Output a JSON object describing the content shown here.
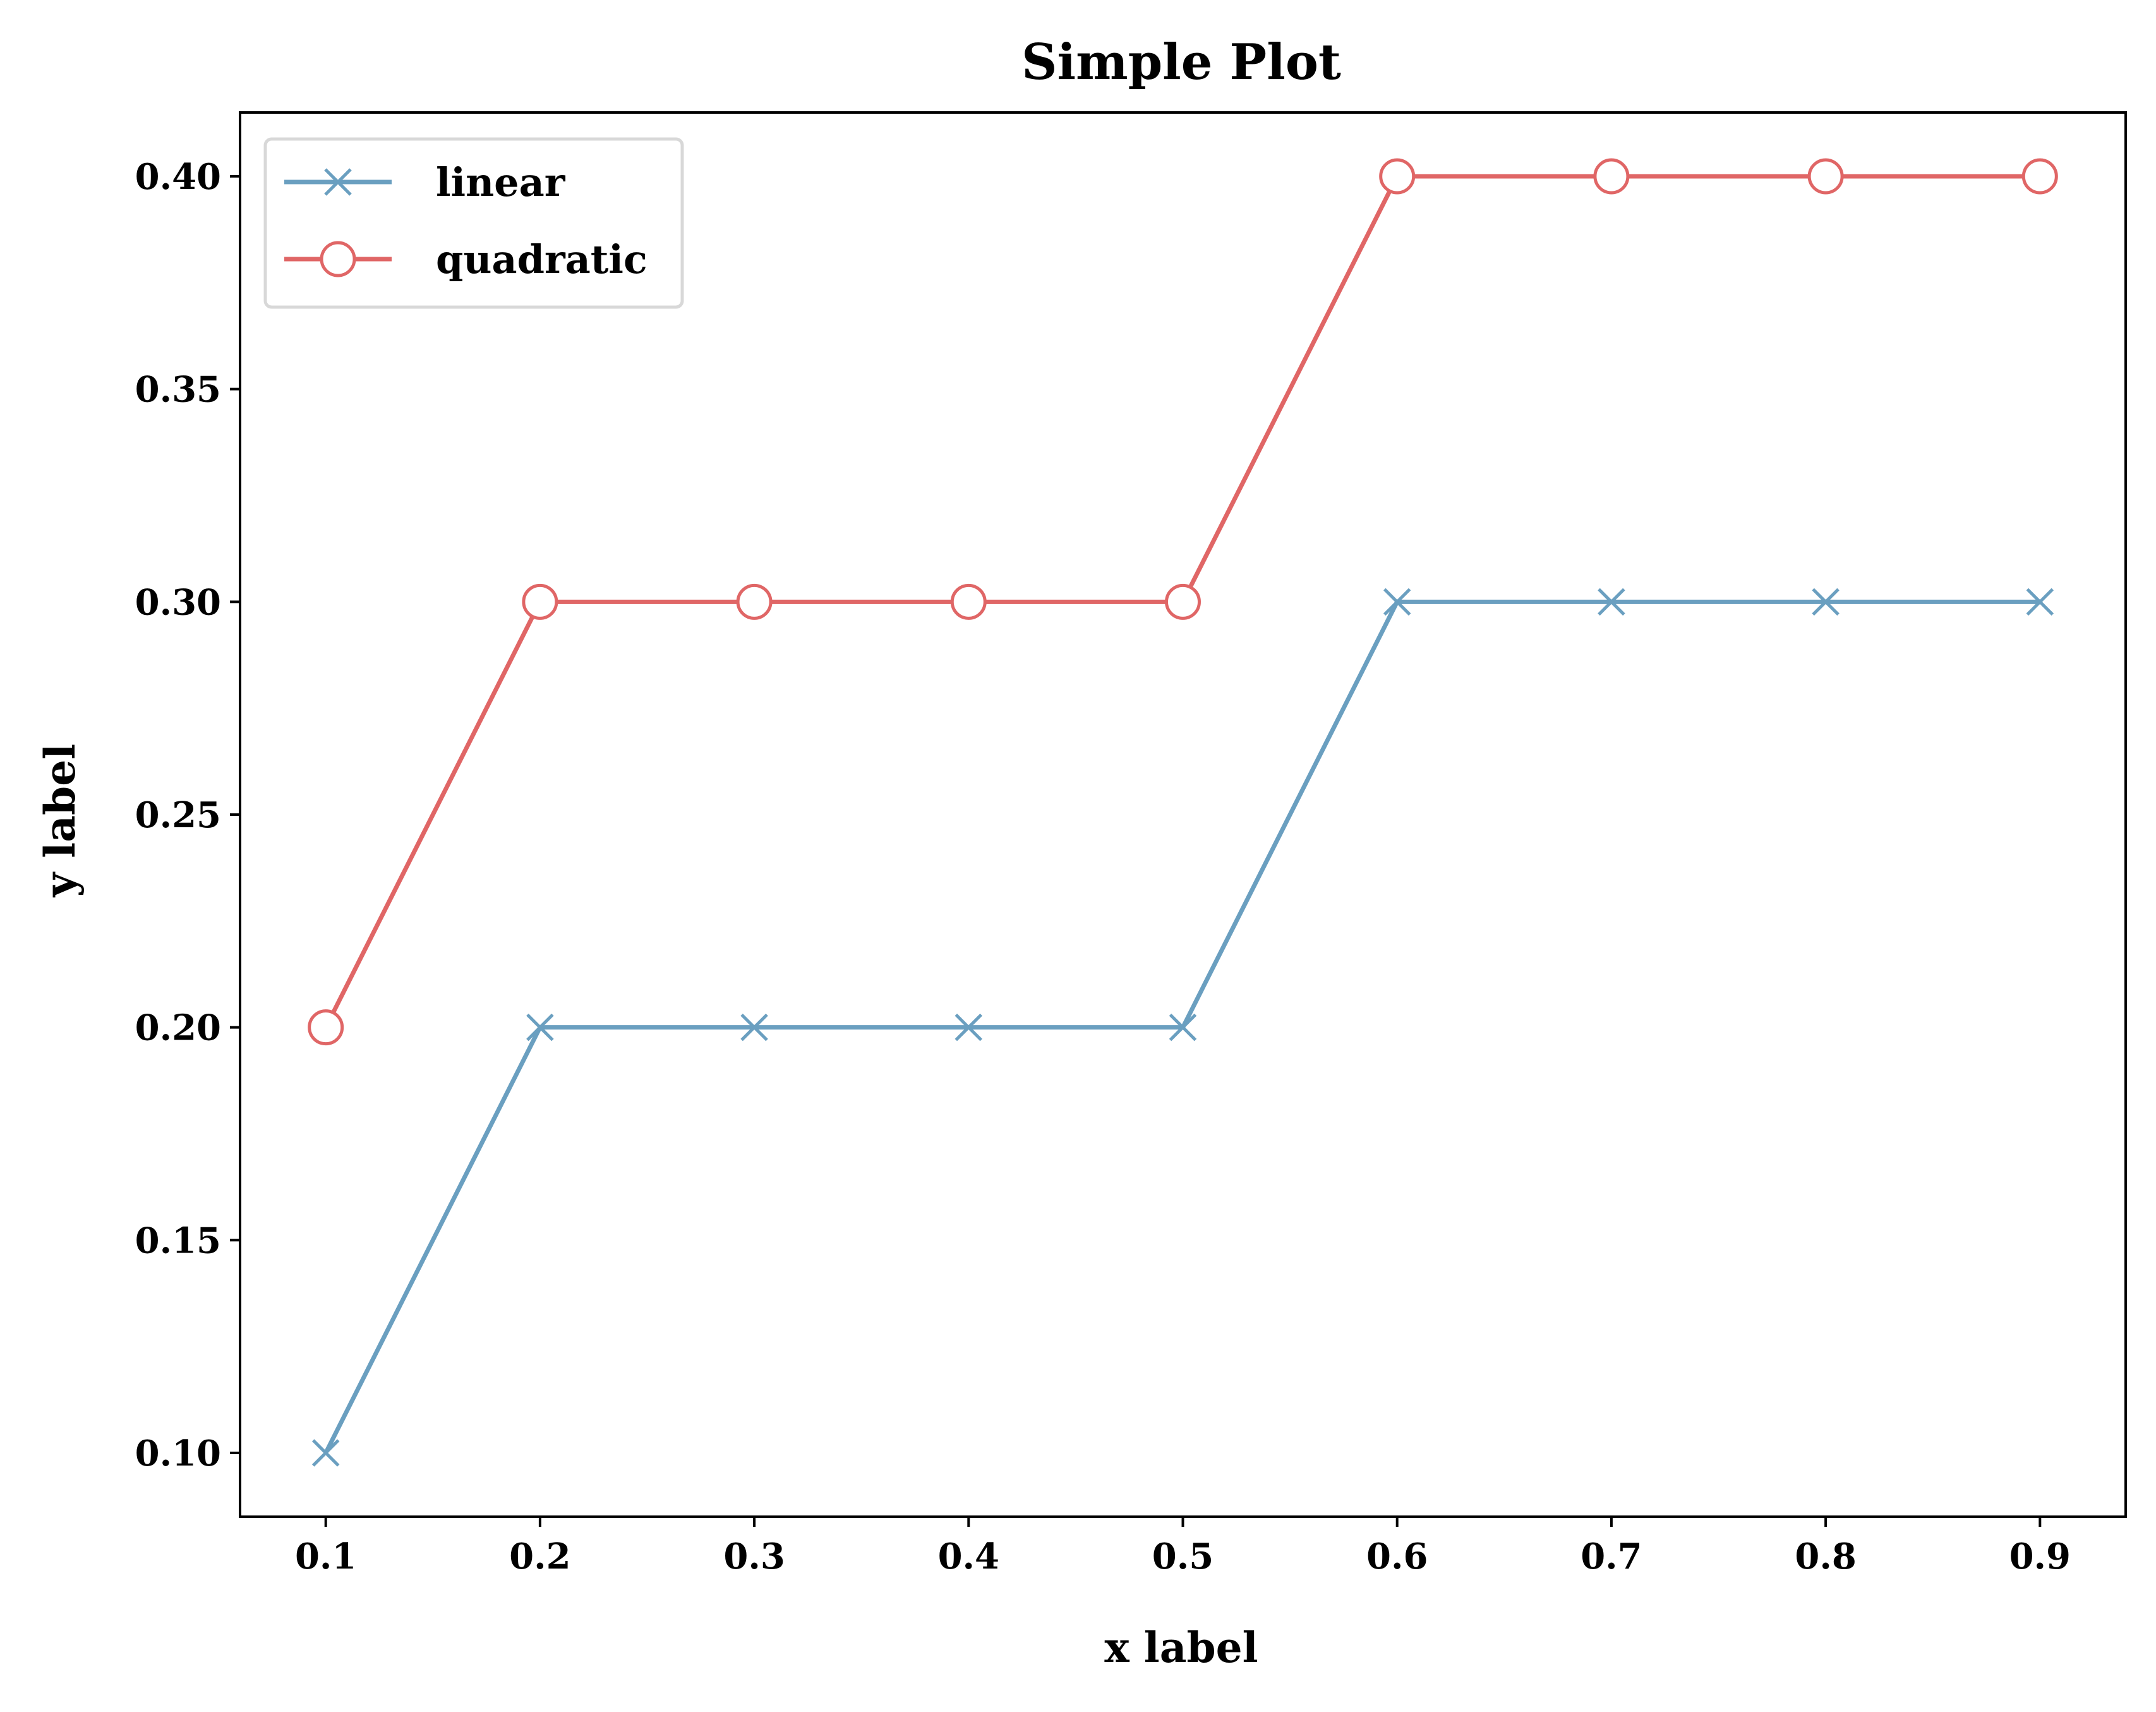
{
  "colors": {
    "linear": "#6a9fc0",
    "quadratic": "#e06666",
    "axis": "#000000",
    "background": "#ffffff"
  },
  "chart_data": {
    "type": "line",
    "title": "Simple Plot",
    "xlabel": "x label",
    "ylabel": "y label",
    "xlim": [
      0.06,
      0.94
    ],
    "ylim": [
      0.085,
      0.415
    ],
    "x": [
      0.1,
      0.2,
      0.3,
      0.4,
      0.5,
      0.6,
      0.7,
      0.8,
      0.9
    ],
    "xticks": [
      "0.1",
      "0.2",
      "0.3",
      "0.4",
      "0.5",
      "0.6",
      "0.7",
      "0.8",
      "0.9"
    ],
    "yticks": [
      "0.10",
      "0.15",
      "0.20",
      "0.25",
      "0.30",
      "0.35",
      "0.40"
    ],
    "grid": false,
    "legend_position": "top-left",
    "series": [
      {
        "name": "linear",
        "marker": "x",
        "color": "#6a9fc0",
        "values": [
          0.1,
          0.2,
          0.2,
          0.2,
          0.2,
          0.3,
          0.3,
          0.3,
          0.3
        ]
      },
      {
        "name": "quadratic",
        "marker": "hollow-circle",
        "color": "#e06666",
        "values": [
          0.2,
          0.3,
          0.3,
          0.3,
          0.3,
          0.4,
          0.4,
          0.4,
          0.4
        ]
      }
    ]
  }
}
